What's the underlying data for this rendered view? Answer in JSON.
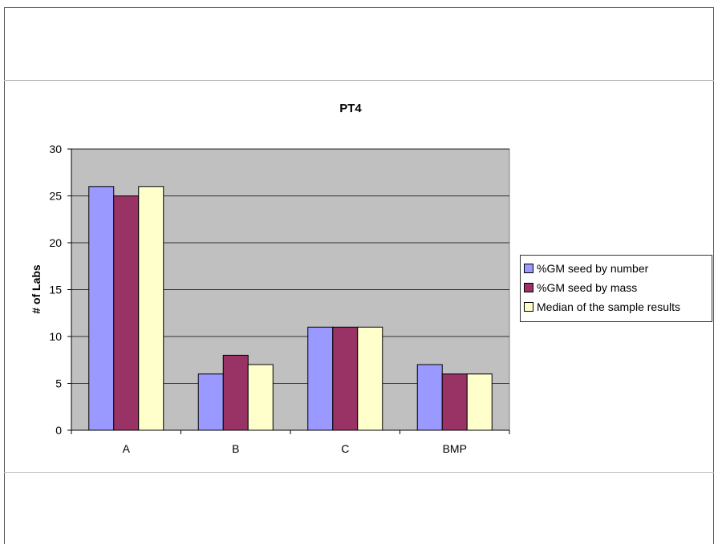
{
  "chart_data": {
    "type": "bar",
    "title": "PT4",
    "xlabel": "",
    "ylabel": "# of Labs",
    "ylim": [
      0,
      30
    ],
    "yticks": [
      0,
      5,
      10,
      15,
      20,
      25,
      30
    ],
    "categories": [
      "A",
      "B",
      "C",
      "BMP"
    ],
    "series": [
      {
        "name": "%GM seed by number",
        "values": [
          26,
          6,
          11,
          7
        ],
        "color": "#9999ff"
      },
      {
        "name": "%GM seed by mass",
        "values": [
          25,
          8,
          11,
          6
        ],
        "color": "#993366"
      },
      {
        "name": "Median of the sample results",
        "values": [
          26,
          7,
          11,
          6
        ],
        "color": "#ffffcc"
      }
    ],
    "grid": true,
    "plot_background": "#c0c0c0",
    "legend_position": "right"
  }
}
